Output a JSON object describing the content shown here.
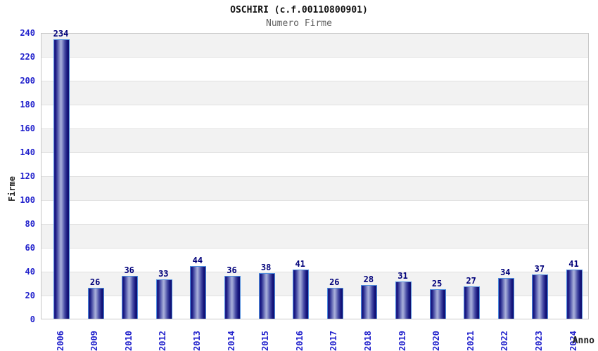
{
  "title": "OSCHIRI (c.f.00110800901)",
  "subtitle": "Numero Firme",
  "chart_data": {
    "type": "bar",
    "title": "OSCHIRI (c.f.00110800901)",
    "subtitle": "Numero Firme",
    "xlabel": "Anno",
    "ylabel": "Firme",
    "categories": [
      "2006",
      "2009",
      "2010",
      "2012",
      "2013",
      "2014",
      "2015",
      "2016",
      "2017",
      "2018",
      "2019",
      "2020",
      "2021",
      "2022",
      "2023",
      "2024"
    ],
    "values": [
      234,
      26,
      36,
      33,
      44,
      36,
      38,
      41,
      26,
      28,
      31,
      25,
      27,
      34,
      37,
      41
    ],
    "ylim": [
      0,
      240
    ],
    "ytick_step": 20,
    "grid": true,
    "legend": "none",
    "bands": "alternating gray/white every 20 units, gray at top",
    "colors": {
      "bar_dark": "#16167e",
      "bar_highlight": "#a9b0da",
      "bar_border": "#4e8ede",
      "tick_label": "#2222cc",
      "value_label": "#00007a",
      "axis_title": "#222222",
      "title": "#111111",
      "subtitle": "#606060",
      "band_gray": "#f2f2f2",
      "grid_line": "#e0e0e0"
    }
  }
}
